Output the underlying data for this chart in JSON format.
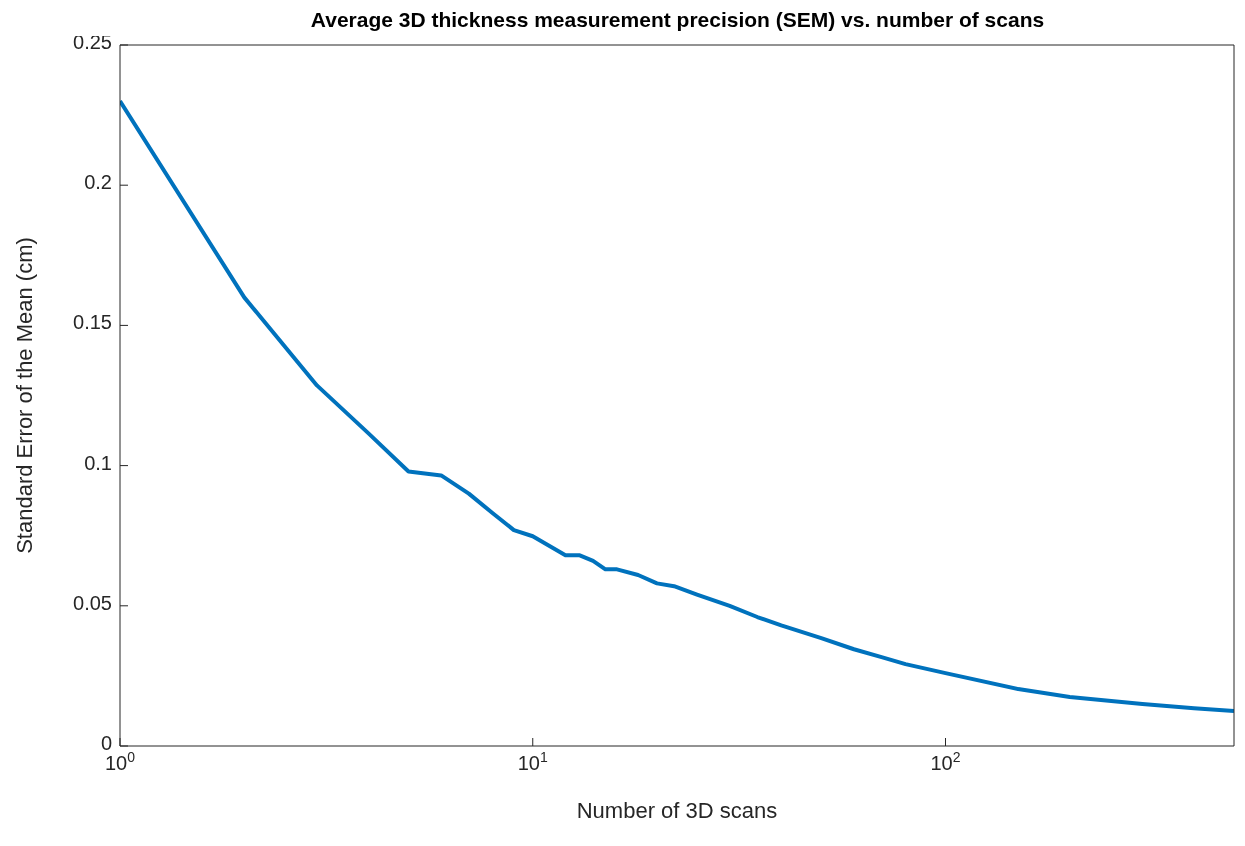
{
  "chart_data": {
    "type": "line",
    "title": "Average 3D thickness measurement precision (SEM) vs. number of scans",
    "xlabel": "Number of 3D scans",
    "ylabel": "Standard Error of the Mean (cm)",
    "log": "x",
    "marker": "none",
    "line_style": "solid",
    "xlim": [
      1,
      500
    ],
    "xticks": [
      {
        "value": 1,
        "label": "10$^{0}$"
      },
      {
        "value": 10,
        "label": "10$^{1}$"
      },
      {
        "value": 100,
        "label": "10$^{2}$"
      }
    ],
    "ylim": [
      0,
      0.25
    ],
    "yticks": [
      0,
      0.05,
      0.1,
      0.15,
      0.2,
      0.25
    ],
    "x": [
      1,
      2,
      3,
      4,
      5,
      6,
      7,
      8,
      9,
      10,
      12,
      13,
      14,
      15,
      16,
      18,
      20,
      22,
      25,
      30,
      35,
      40,
      50,
      60,
      70,
      80,
      100,
      150,
      200,
      300,
      400,
      500
    ],
    "series": [
      {
        "color": "#0072bd",
        "values": [
          0.23,
          0.16,
          0.1286,
          0.1115,
          0.0979,
          0.0965,
          0.09,
          0.083,
          0.077,
          0.0748,
          0.068,
          0.068,
          0.066,
          0.063,
          0.063,
          0.061,
          0.058,
          0.057,
          0.054,
          0.05,
          0.046,
          0.043,
          0.0385,
          0.0345,
          0.0317,
          0.0292,
          0.026,
          0.0203,
          0.0175,
          0.015,
          0.0135,
          0.0125
        ]
      }
    ]
  }
}
